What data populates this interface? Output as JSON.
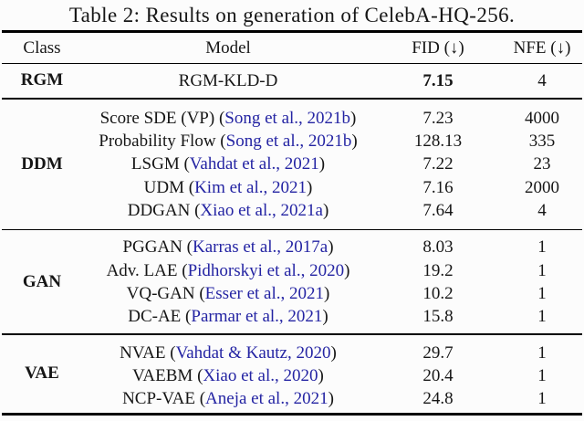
{
  "title": "Table 2: Results on generation of CelebA-HQ-256.",
  "columns": [
    "Class",
    "Model",
    "FID (↓)",
    "NFE (↓)"
  ],
  "colors": {
    "citation_link": "#2424a3",
    "text": "#161616",
    "rule": "#000000",
    "background": "#fcfcfc"
  },
  "sections": [
    {
      "class_name": "RGM",
      "rows": [
        {
          "model_name": "RGM-KLD-D",
          "fid": "7.15",
          "nfe": "4"
        }
      ]
    },
    {
      "class_name": "DDM",
      "rows": [
        {
          "model_name": "Score SDE (VP)",
          "citation": "Song et al., 2021b",
          "fid": "7.23",
          "nfe": "4000"
        },
        {
          "model_name": "Probability Flow",
          "citation": "Song et al., 2021b",
          "fid": "128.13",
          "nfe": "335"
        },
        {
          "model_name": "LSGM",
          "citation": "Vahdat et al., 2021",
          "fid": "7.22",
          "nfe": "23"
        },
        {
          "model_name": "UDM",
          "citation": "Kim et al., 2021",
          "fid": "7.16",
          "nfe": "2000"
        },
        {
          "model_name": "DDGAN",
          "citation": "Xiao et al., 2021a",
          "fid": "7.64",
          "nfe": "4"
        }
      ]
    },
    {
      "class_name": "GAN",
      "rows": [
        {
          "model_name": "PGGAN",
          "citation": "Karras et al., 2017a",
          "fid": "8.03",
          "nfe": "1"
        },
        {
          "model_name": "Adv. LAE",
          "citation": "Pidhorskyi et al., 2020",
          "fid": "19.2",
          "nfe": "1"
        },
        {
          "model_name": "VQ-GAN",
          "citation": "Esser et al., 2021",
          "fid": "10.2",
          "nfe": "1"
        },
        {
          "model_name": "DC-AE",
          "citation": "Parmar et al., 2021",
          "fid": "15.8",
          "nfe": "1"
        }
      ]
    },
    {
      "class_name": "VAE",
      "rows": [
        {
          "model_name": "NVAE",
          "citation": "Vahdat & Kautz, 2020",
          "fid": "29.7",
          "nfe": "1"
        },
        {
          "model_name": "VAEBM",
          "citation": "Xiao et al., 2020",
          "fid": "20.4",
          "nfe": "1"
        },
        {
          "model_name": "NCP-VAE",
          "citation": "Aneja et al., 2021",
          "fid": "24.8",
          "nfe": "1"
        }
      ]
    }
  ]
}
